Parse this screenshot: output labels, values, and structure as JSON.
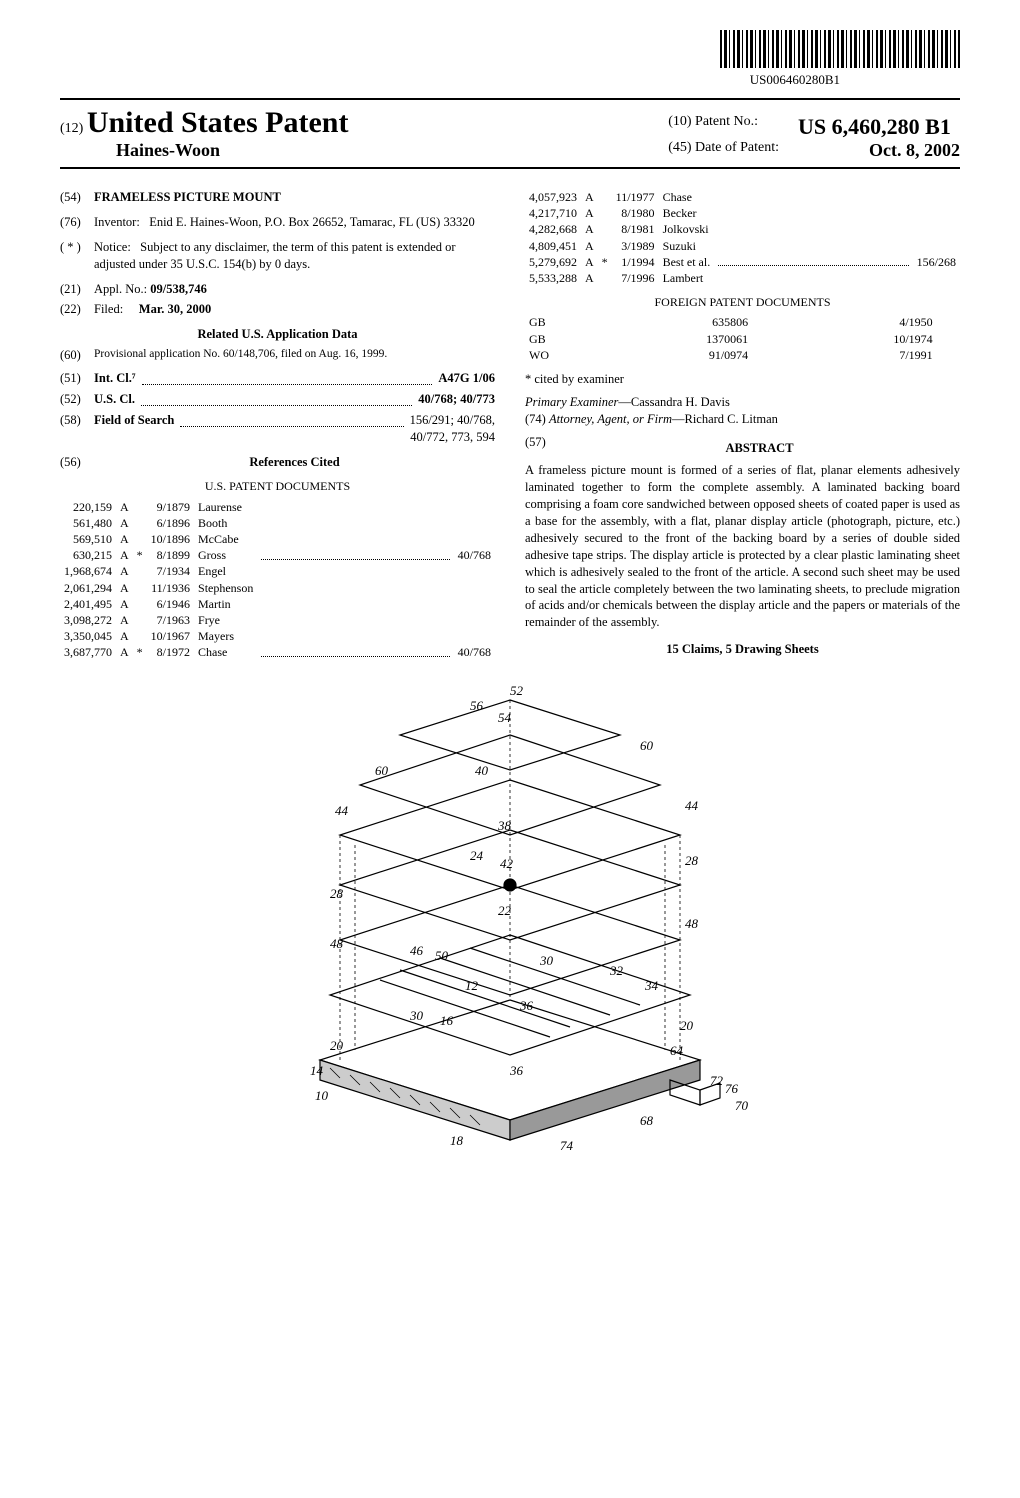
{
  "barcode_number": "US006460280B1",
  "header": {
    "doc_code": "(12)",
    "country_line": "United States Patent",
    "inventor_line": "Haines-Woon",
    "patent_no_label": "(10) Patent No.:",
    "patent_no": "US 6,460,280 B1",
    "date_label": "(45) Date of Patent:",
    "date": "Oct. 8, 2002"
  },
  "left": {
    "title_num": "(54)",
    "title": "FRAMELESS PICTURE MOUNT",
    "inventor_num": "(76)",
    "inventor_label": "Inventor:",
    "inventor_text": "Enid E. Haines-Woon, P.O. Box 26652, Tamarac, FL (US) 33320",
    "notice_num": "( * )",
    "notice_label": "Notice:",
    "notice_text": "Subject to any disclaimer, the term of this patent is extended or adjusted under 35 U.S.C. 154(b) by 0 days.",
    "appl_num": "(21)",
    "appl_label": "Appl. No.:",
    "appl_val": "09/538,746",
    "filed_num": "(22)",
    "filed_label": "Filed:",
    "filed_val": "Mar. 30, 2000",
    "related_head": "Related U.S. Application Data",
    "prov_num": "(60)",
    "prov_text": "Provisional application No. 60/148,706, filed on Aug. 16, 1999.",
    "intcl_num": "(51)",
    "intcl_label": "Int. Cl.⁷",
    "intcl_val": "A47G 1/06",
    "uscl_num": "(52)",
    "uscl_label": "U.S. Cl.",
    "uscl_val": "40/768; 40/773",
    "fos_num": "(58)",
    "fos_label": "Field of Search",
    "fos_val1": "156/291; 40/768,",
    "fos_val2": "40/772, 773, 594",
    "refs_num": "(56)",
    "refs_label": "References Cited",
    "us_docs_head": "U.S. PATENT DOCUMENTS",
    "us_refs": [
      {
        "n": "220,159",
        "t": "A",
        "d": "9/1879",
        "a": "Laurense"
      },
      {
        "n": "561,480",
        "t": "A",
        "d": "6/1896",
        "a": "Booth"
      },
      {
        "n": "569,510",
        "t": "A",
        "d": "10/1896",
        "a": "McCabe"
      },
      {
        "n": "630,215",
        "t": "A",
        "s": "*",
        "d": "8/1899",
        "a": "Gross",
        "c": "40/768"
      },
      {
        "n": "1,968,674",
        "t": "A",
        "d": "7/1934",
        "a": "Engel"
      },
      {
        "n": "2,061,294",
        "t": "A",
        "d": "11/1936",
        "a": "Stephenson"
      },
      {
        "n": "2,401,495",
        "t": "A",
        "d": "6/1946",
        "a": "Martin"
      },
      {
        "n": "3,098,272",
        "t": "A",
        "d": "7/1963",
        "a": "Frye"
      },
      {
        "n": "3,350,045",
        "t": "A",
        "d": "10/1967",
        "a": "Mayers"
      },
      {
        "n": "3,687,770",
        "t": "A",
        "s": "*",
        "d": "8/1972",
        "a": "Chase",
        "c": "40/768"
      }
    ]
  },
  "right": {
    "us_refs2": [
      {
        "n": "4,057,923",
        "t": "A",
        "d": "11/1977",
        "a": "Chase"
      },
      {
        "n": "4,217,710",
        "t": "A",
        "d": "8/1980",
        "a": "Becker"
      },
      {
        "n": "4,282,668",
        "t": "A",
        "d": "8/1981",
        "a": "Jolkovski"
      },
      {
        "n": "4,809,451",
        "t": "A",
        "d": "3/1989",
        "a": "Suzuki"
      },
      {
        "n": "5,279,692",
        "t": "A",
        "s": "*",
        "d": "1/1994",
        "a": "Best et al.",
        "c": "156/268"
      },
      {
        "n": "5,533,288",
        "t": "A",
        "d": "7/1996",
        "a": "Lambert"
      }
    ],
    "foreign_head": "FOREIGN PATENT DOCUMENTS",
    "foreign_refs": [
      {
        "cc": "GB",
        "n": "635806",
        "d": "4/1950"
      },
      {
        "cc": "GB",
        "n": "1370061",
        "d": "10/1974"
      },
      {
        "cc": "WO",
        "n": "91/0974",
        "d": "7/1991"
      }
    ],
    "cited": "* cited by examiner",
    "examiner_label": "Primary Examiner",
    "examiner": "—Cassandra H. Davis",
    "attorney_num": "(74)",
    "attorney_label": "Attorney, Agent, or Firm",
    "attorney": "—Richard C. Litman",
    "abstract_num": "(57)",
    "abstract_head": "ABSTRACT",
    "abstract_text": "A frameless picture mount is formed of a series of flat, planar elements adhesively laminated together to form the complete assembly. A laminated backing board comprising a foam core sandwiched between opposed sheets of coated paper is used as a base for the assembly, with a flat, planar display article (photograph, picture, etc.) adhesively secured to the front of the backing board by a series of double sided adhesive tape strips. The display article is protected by a clear plastic laminating sheet which is adhesively sealed to the front of the article. A second such sheet may be used to seal the article completely between the two laminating sheets, to preclude migration of acids and/or chemicals between the display article and the papers or materials of the remainder of the assembly.",
    "claims": "15 Claims, 5 Drawing Sheets"
  },
  "figure_labels": [
    "52",
    "56",
    "54",
    "40",
    "60",
    "60",
    "44",
    "44",
    "38",
    "42",
    "24",
    "28",
    "28",
    "22",
    "48",
    "48",
    "46",
    "50",
    "30",
    "32",
    "12",
    "36",
    "34",
    "30",
    "16",
    "20",
    "20",
    "64",
    "14",
    "36",
    "10",
    "72",
    "76",
    "18",
    "68",
    "74",
    "70"
  ]
}
